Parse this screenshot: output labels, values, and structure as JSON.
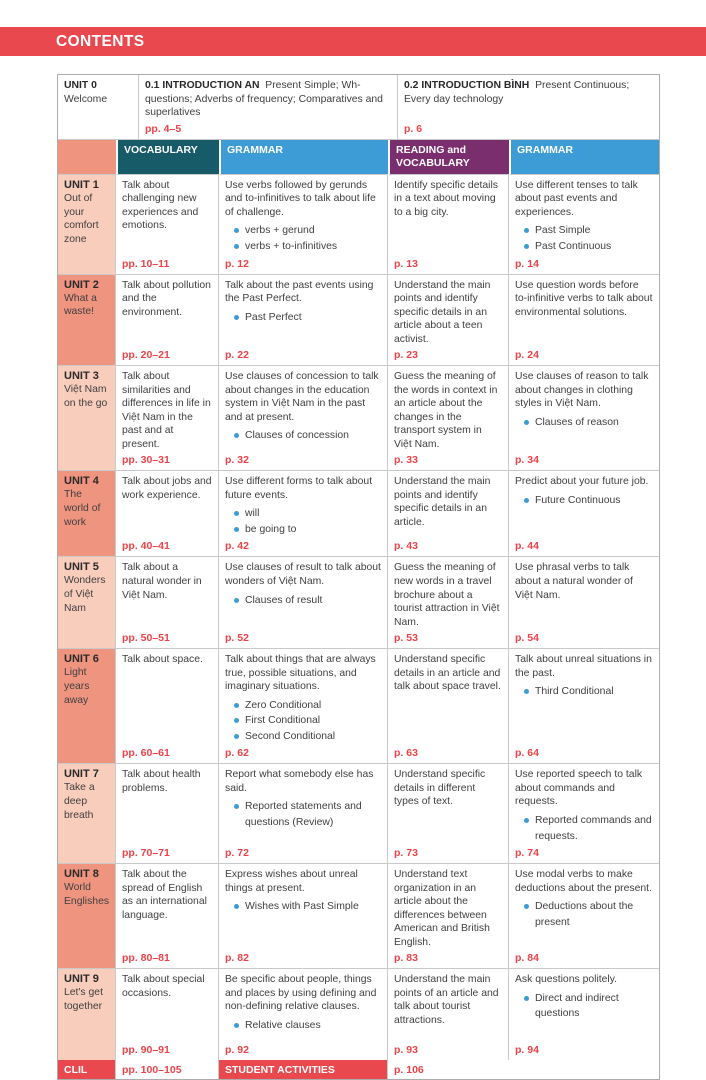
{
  "page_title": "CONTENTS",
  "colors": {
    "accent_red": "#E9484F",
    "salmon_dark": "#EF947F",
    "salmon_light": "#F9CDBC",
    "teal": "#175A68",
    "blue": "#3D9BD5",
    "purple": "#7B2E6D",
    "page_number_red": "#ED4248"
  },
  "unit0": {
    "unit": "UNIT 0",
    "subtitle": "Welcome",
    "lesson1": {
      "lead": "0.1 INTRODUCTION AN",
      "text": "Present Simple; Wh- questions; Adverbs of frequency; Comparatives and superlatives",
      "page": "pp. 4–5"
    },
    "lesson2": {
      "lead": "0.2 INTRODUCTION BÌNH",
      "text": "Present Continuous; Every day technology",
      "page": "p. 6"
    }
  },
  "columns": [
    "VOCABULARY",
    "GRAMMAR",
    "READING and VOCABULARY",
    "GRAMMAR"
  ],
  "units": [
    {
      "unit": "UNIT 1",
      "subtitle": "Out of your comfort zone",
      "cells": [
        {
          "text": "Talk about challenging new experiences and emotions.",
          "bullets": [],
          "page": "pp. 10–11"
        },
        {
          "text": "Use verbs followed by gerunds and to-infinitives to talk about life of challenge.",
          "bullets": [
            "verbs + gerund",
            "verbs + to-infinitives"
          ],
          "page": "p. 12"
        },
        {
          "text": "Identify specific details in a text about moving to a big city.",
          "bullets": [],
          "page": "p. 13"
        },
        {
          "text": "Use different tenses to talk about past events and experiences.",
          "bullets": [
            "Past Simple",
            "Past Continuous"
          ],
          "page": "p. 14"
        }
      ]
    },
    {
      "unit": "UNIT 2",
      "subtitle": "What a waste!",
      "cells": [
        {
          "text": "Talk about pollution and the environment.",
          "bullets": [],
          "page": "pp. 20–21"
        },
        {
          "text": "Talk about the past events using the Past Perfect.",
          "bullets": [
            "Past Perfect"
          ],
          "page": "p. 22"
        },
        {
          "text": "Understand the main points and identify specific details in an article about a teen activist.",
          "bullets": [],
          "page": "p. 23"
        },
        {
          "text": "Use question words before to-infinitive verbs to talk about environmental solutions.",
          "bullets": [],
          "page": "p. 24"
        }
      ]
    },
    {
      "unit": "UNIT 3",
      "subtitle": "Việt Nam on the go",
      "cells": [
        {
          "text": "Talk about similarities and differences in life in Việt Nam in the past and at present.",
          "bullets": [],
          "page": "pp. 30–31"
        },
        {
          "text": "Use clauses of concession to talk about changes in the education system in Việt Nam in the past and at present.",
          "bullets": [
            "Clauses of concession"
          ],
          "page": "p. 32"
        },
        {
          "text": "Guess the meaning of the words in context in an article about the changes in the transport system in Việt Nam.",
          "bullets": [],
          "page": "p. 33"
        },
        {
          "text": "Use clauses of reason to talk about changes in clothing styles in Việt Nam.",
          "bullets": [
            "Clauses of reason"
          ],
          "page": "p. 34"
        }
      ]
    },
    {
      "unit": "UNIT 4",
      "subtitle": "The world of work",
      "cells": [
        {
          "text": "Talk about jobs and work experience.",
          "bullets": [],
          "page": "pp. 40–41"
        },
        {
          "text": "Use different forms to talk about future events.",
          "bullets": [
            "will",
            "be going to"
          ],
          "page": "p. 42"
        },
        {
          "text": "Understand the main points and identify specific details in an article.",
          "bullets": [],
          "page": "p. 43"
        },
        {
          "text": "Predict about your future job.",
          "bullets": [
            "Future Continuous"
          ],
          "page": "p. 44"
        }
      ]
    },
    {
      "unit": "UNIT 5",
      "subtitle": "Wonders of Việt Nam",
      "cells": [
        {
          "text": "Talk about a natural wonder in Việt Nam.",
          "bullets": [],
          "page": "pp. 50–51"
        },
        {
          "text": "Use clauses of result to talk about wonders of Việt Nam.",
          "bullets": [
            "Clauses of result"
          ],
          "page": "p. 52"
        },
        {
          "text": "Guess the meaning of new words in a travel brochure about a tourist attraction in Việt Nam.",
          "bullets": [],
          "page": "p. 53"
        },
        {
          "text": "Use phrasal verbs to talk about a natural wonder of Việt Nam.",
          "bullets": [],
          "page": "p. 54"
        }
      ]
    },
    {
      "unit": "UNIT 6",
      "subtitle": "Light years away",
      "cells": [
        {
          "text": "Talk about space.",
          "bullets": [],
          "page": "pp. 60–61"
        },
        {
          "text": "Talk about things that are always true, possible situations, and imaginary situations.",
          "bullets": [
            "Zero Conditional",
            "First Conditional",
            "Second Conditional"
          ],
          "page": "p. 62"
        },
        {
          "text": "Understand specific details in an article and talk about space travel.",
          "bullets": [],
          "page": "p. 63"
        },
        {
          "text": "Talk about unreal situations in the past.",
          "bullets": [
            "Third Conditional"
          ],
          "page": "p. 64"
        }
      ]
    },
    {
      "unit": "UNIT 7",
      "subtitle": "Take a deep breath",
      "cells": [
        {
          "text": "Talk about health problems.",
          "bullets": [],
          "page": "pp. 70–71"
        },
        {
          "text": "Report what somebody else has said.",
          "bullets": [
            "Reported statements and questions (Review)"
          ],
          "page": "p. 72"
        },
        {
          "text": "Understand specific details in different types of text.",
          "bullets": [],
          "page": "p. 73"
        },
        {
          "text": "Use reported speech to talk about commands and requests.",
          "bullets": [
            "Reported commands and requests."
          ],
          "page": "p. 74"
        }
      ]
    },
    {
      "unit": "UNIT 8",
      "subtitle": "World Englishes",
      "cells": [
        {
          "text": "Talk about the spread of English as an international language.",
          "bullets": [],
          "page": "pp. 80–81"
        },
        {
          "text": "Express wishes about unreal things at present.",
          "bullets": [
            "Wishes with Past Simple"
          ],
          "page": "p. 82"
        },
        {
          "text": "Understand text organization in an article about the differences between American and British English.",
          "bullets": [],
          "page": "p. 83"
        },
        {
          "text": "Use modal verbs to make deductions about the present.",
          "bullets": [
            "Deductions about the present"
          ],
          "page": "p. 84"
        }
      ]
    },
    {
      "unit": "UNIT 9",
      "subtitle": "Let's get together",
      "cells": [
        {
          "text": "Talk about special occasions.",
          "bullets": [],
          "page": "pp. 90–91"
        },
        {
          "text": "Be specific about people, things and places by using defining and non-defining relative clauses.",
          "bullets": [
            "Relative clauses"
          ],
          "page": "p. 92"
        },
        {
          "text": "Understand the main points of an article and talk about tourist attractions.",
          "bullets": [],
          "page": "p. 93"
        },
        {
          "text": "Ask questions politely.",
          "bullets": [
            "Direct and indirect questions"
          ],
          "page": "p. 94"
        }
      ]
    }
  ],
  "footer": {
    "clil": "CLIL",
    "clil_pages": "pp. 100–105",
    "student_activities": "STUDENT ACTIVITIES",
    "student_activities_page": "p. 106"
  }
}
